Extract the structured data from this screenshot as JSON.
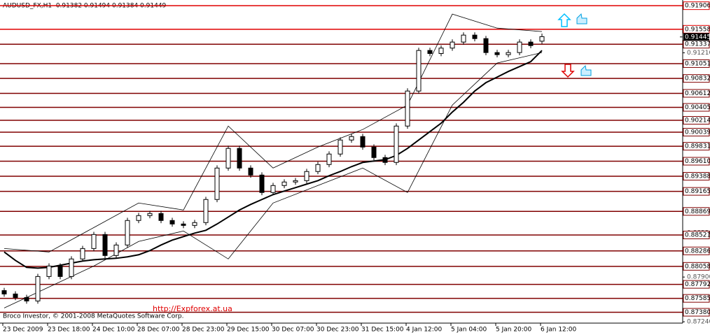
{
  "chart_data": {
    "type": "candlestick",
    "title": "AUDUSD_FX,H1  0.91382 0.91494 0.91384 0.91449",
    "footer": "Broco Investor, © 2001-2008 MetaQuotes Software Corp.",
    "annotation": "http://Expforex.at.ua",
    "categories": [
      "23 Dec 2009",
      null,
      null,
      null,
      "23 Dec 18:00",
      null,
      null,
      null,
      "24 Dec 10:00",
      null,
      null,
      null,
      "28 Dec 07:00",
      null,
      null,
      null,
      "28 Dec 23:00",
      null,
      null,
      null,
      "29 Dec 15:00",
      null,
      null,
      null,
      "30 Dec 07:00",
      null,
      null,
      null,
      "30 Dec 23:00",
      null,
      null,
      null,
      "31 Dec 15:00",
      null,
      null,
      null,
      "4 Jan 12:00",
      null,
      null,
      null,
      "5 Jan 04:00",
      null,
      null,
      null,
      "5 Jan 20:00",
      null,
      null,
      null,
      "6 Jan 12:00"
    ],
    "open": [
      0.877,
      0.8765,
      0.87598,
      0.87547,
      0.87908,
      0.88063,
      0.87908,
      0.88167,
      0.88321,
      0.88528,
      0.88218,
      0.88373,
      0.88735,
      0.88807,
      0.88838,
      0.88735,
      0.88683,
      0.88662,
      0.88704,
      0.89045,
      0.89509,
      0.89799,
      0.89509,
      0.89406,
      0.89148,
      0.89251,
      0.89303,
      0.89323,
      0.89458,
      0.89561,
      0.89716,
      0.89923,
      0.89974,
      0.89819,
      0.89664,
      0.89592,
      0.90129,
      0.90646,
      0.91245,
      0.912,
      0.9128,
      0.91369,
      0.91472,
      0.9142,
      0.91214,
      0.91183,
      0.91214,
      0.91369,
      0.91382
    ],
    "high": [
      0.8774,
      0.8769,
      0.87638,
      0.87948,
      0.88103,
      0.88103,
      0.88207,
      0.88361,
      0.88568,
      0.88568,
      0.88413,
      0.88775,
      0.88847,
      0.88878,
      0.88878,
      0.88775,
      0.88723,
      0.88744,
      0.89085,
      0.89549,
      0.89839,
      0.89839,
      0.89549,
      0.89446,
      0.89291,
      0.89343,
      0.89363,
      0.89498,
      0.89601,
      0.89756,
      0.89963,
      0.90014,
      0.90014,
      0.89859,
      0.89704,
      0.90169,
      0.90686,
      0.91285,
      0.91285,
      0.9132,
      0.91409,
      0.91512,
      0.91512,
      0.9146,
      0.91254,
      0.91254,
      0.91409,
      0.91409,
      0.91494
    ],
    "low": [
      0.8761,
      0.87558,
      0.87507,
      0.87507,
      0.87868,
      0.87868,
      0.87868,
      0.88127,
      0.88281,
      0.88178,
      0.88178,
      0.88333,
      0.88695,
      0.88767,
      0.88695,
      0.88643,
      0.88622,
      0.88622,
      0.88664,
      0.89005,
      0.89469,
      0.89469,
      0.89366,
      0.89108,
      0.89108,
      0.89211,
      0.89263,
      0.89283,
      0.89418,
      0.89521,
      0.89676,
      0.89883,
      0.89779,
      0.89624,
      0.89552,
      0.89552,
      0.90089,
      0.90606,
      0.9116,
      0.9116,
      0.9124,
      0.91329,
      0.9138,
      0.91174,
      0.91143,
      0.91143,
      0.91174,
      0.91277,
      0.91342
    ],
    "close": [
      0.8765,
      0.87598,
      0.87547,
      0.87908,
      0.88063,
      0.87908,
      0.88167,
      0.88321,
      0.88528,
      0.88218,
      0.88373,
      0.88735,
      0.88807,
      0.88838,
      0.88735,
      0.88683,
      0.88662,
      0.88704,
      0.89045,
      0.89509,
      0.89799,
      0.89509,
      0.89406,
      0.89148,
      0.89251,
      0.89303,
      0.89323,
      0.89458,
      0.89561,
      0.89716,
      0.89923,
      0.89974,
      0.89819,
      0.89664,
      0.89592,
      0.90129,
      0.90646,
      0.91245,
      0.912,
      0.9128,
      0.91369,
      0.91472,
      0.9142,
      0.91214,
      0.91183,
      0.91214,
      0.91369,
      0.91317,
      0.91449
    ],
    "color": "#000000",
    "ylim": [
      0.8722,
      0.9199
    ],
    "yticks": [
      {
        "value": 0.9121,
        "label": "0.91210"
      },
      {
        "value": 0.8855,
        "label": "0.88550"
      },
      {
        "value": 0.879,
        "label": "0.87900"
      },
      {
        "value": 0.8724,
        "label": "0.87240"
      }
    ],
    "levels": [
      {
        "value": 0.91906,
        "label": "0.91906",
        "color": "#e00000"
      },
      {
        "value": 0.91558,
        "label": "0.91558",
        "color": "#e00000"
      },
      {
        "value": 0.91337,
        "label": "0.91337",
        "color": "#800000"
      },
      {
        "value": 0.91051,
        "label": "0.91051",
        "color": "#800000"
      },
      {
        "value": 0.90832,
        "label": "0.90832",
        "color": "#800000"
      },
      {
        "value": 0.90612,
        "label": "0.90612",
        "color": "#800000"
      },
      {
        "value": 0.90405,
        "label": "0.90405",
        "color": "#800000"
      },
      {
        "value": 0.90214,
        "label": "0.90214",
        "color": "#800000"
      },
      {
        "value": 0.90039,
        "label": "0.90039",
        "color": "#800000"
      },
      {
        "value": 0.89831,
        "label": "0.89831",
        "color": "#800000"
      },
      {
        "value": 0.8961,
        "label": "0.89610",
        "color": "#800000"
      },
      {
        "value": 0.89388,
        "label": "0.89388",
        "color": "#800000"
      },
      {
        "value": 0.89165,
        "label": "0.89165",
        "color": "#800000"
      },
      {
        "value": 0.88869,
        "label": "0.88869",
        "color": "#800000"
      },
      {
        "value": 0.88521,
        "label": "0.88521",
        "color": "#800000"
      },
      {
        "value": 0.88286,
        "label": "0.88286",
        "color": "#800000"
      },
      {
        "value": 0.88058,
        "label": "0.88058",
        "color": "#800000"
      },
      {
        "value": 0.87792,
        "label": "0.87792",
        "color": "#800000"
      },
      {
        "value": 0.87585,
        "label": "0.87585",
        "color": "#800000"
      },
      {
        "value": 0.8738,
        "label": "0.87380",
        "color": "#800000"
      }
    ],
    "current_price": {
      "value": 0.91445,
      "label": "0.91445"
    },
    "moving_average": {
      "color": "#000000",
      "values": [
        0.8827,
        0.88146,
        0.88043,
        0.88032,
        0.88043,
        0.88074,
        0.88105,
        0.88136,
        0.88156,
        0.88167,
        0.88177,
        0.88198,
        0.88229,
        0.8829,
        0.88373,
        0.88445,
        0.88497,
        0.88549,
        0.8859,
        0.88683,
        0.88786,
        0.8889,
        0.88972,
        0.89045,
        0.89117,
        0.89169,
        0.8922,
        0.89272,
        0.89323,
        0.89396,
        0.89458,
        0.8953,
        0.89592,
        0.89613,
        0.89633,
        0.89695,
        0.89799,
        0.89923,
        0.90047,
        0.90171,
        0.90336,
        0.9048,
        0.90646,
        0.9077,
        0.90852,
        0.90935,
        0.91007,
        0.9108,
        0.91245
      ]
    },
    "bands": [
      {
        "color": "#000000",
        "x": [
          0,
          4,
          8,
          12,
          16,
          20,
          24,
          28,
          32,
          36,
          40,
          44,
          48
        ],
        "values": [
          0.88321,
          0.8827,
          0.88631,
          0.88993,
          0.8889,
          0.90129,
          0.89509,
          0.89819,
          0.90078,
          0.90439,
          0.91782,
          0.91575,
          0.91524
        ]
      },
      {
        "color": "#000000",
        "x": [
          0,
          4,
          8,
          12,
          16,
          20,
          24,
          28,
          32,
          36,
          40,
          44,
          48
        ],
        "values": [
          0.87443,
          0.87753,
          0.88063,
          0.88425,
          0.8858,
          0.88167,
          0.88993,
          0.89251,
          0.89509,
          0.89148,
          0.90439,
          0.91059,
          0.91214
        ]
      }
    ]
  }
}
